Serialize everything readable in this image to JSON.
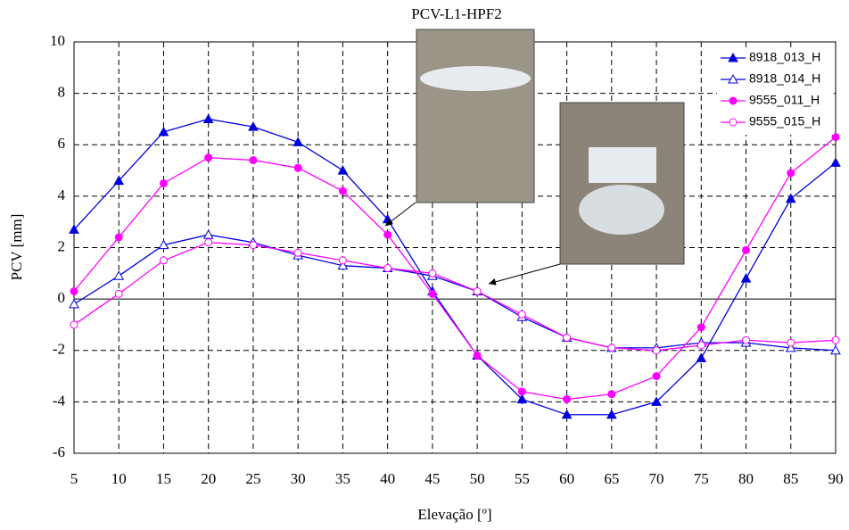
{
  "chart_data": {
    "type": "line",
    "title": "PCV-L1-HPF2",
    "x_label": "Elevação [º]",
    "y_label": "PCV [mm]",
    "x": [
      5,
      10,
      15,
      20,
      25,
      30,
      35,
      40,
      45,
      50,
      55,
      60,
      65,
      70,
      75,
      80,
      85,
      90
    ],
    "xlim": [
      5,
      90
    ],
    "xticks": [
      5,
      10,
      15,
      20,
      25,
      30,
      35,
      40,
      45,
      50,
      55,
      60,
      65,
      70,
      75,
      80,
      85,
      90
    ],
    "ylim": [
      -6,
      10
    ],
    "yticks": [
      -6,
      -4,
      -2,
      0,
      2,
      4,
      6,
      8,
      10
    ],
    "grid": true,
    "legend": "top-right",
    "series": [
      {
        "name": "8918_013_H",
        "color": "#0000e0",
        "marker": "triangle",
        "filled": true,
        "values": [
          2.7,
          4.6,
          6.5,
          7.0,
          6.7,
          6.1,
          5.0,
          3.1,
          0.3,
          -2.2,
          -3.9,
          -4.5,
          -4.5,
          -4.0,
          -2.3,
          0.8,
          3.9,
          5.3
        ]
      },
      {
        "name": "8918_014_H",
        "color": "#0000e0",
        "marker": "triangle",
        "filled": false,
        "values": [
          -0.2,
          0.9,
          2.1,
          2.5,
          2.2,
          1.7,
          1.3,
          1.2,
          0.9,
          0.3,
          -0.7,
          -1.5,
          -1.9,
          -1.9,
          -1.7,
          -1.7,
          -1.9,
          -2.0
        ]
      },
      {
        "name": "9555_011_H",
        "color": "#ff00ff",
        "marker": "circle",
        "filled": true,
        "values": [
          0.3,
          2.4,
          4.5,
          5.5,
          5.4,
          5.1,
          4.2,
          2.5,
          0.2,
          -2.2,
          -3.6,
          -3.9,
          -3.7,
          -3.0,
          -1.1,
          1.9,
          4.9,
          6.3
        ]
      },
      {
        "name": "9555_015_H",
        "color": "#ff00ff",
        "marker": "circle",
        "filled": false,
        "values": [
          -1.0,
          0.2,
          1.5,
          2.2,
          2.1,
          1.8,
          1.5,
          1.2,
          1.0,
          0.3,
          -0.6,
          -1.5,
          -1.9,
          -2.0,
          -1.8,
          -1.6,
          -1.7,
          -1.6
        ]
      }
    ]
  }
}
